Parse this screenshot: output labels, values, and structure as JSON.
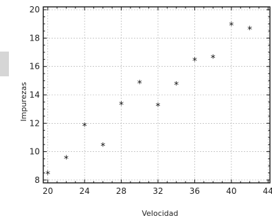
{
  "chart_data": {
    "type": "scatter",
    "title": "",
    "xlabel": "Velocidad",
    "ylabel": "Impurezas",
    "xlim": [
      19.5,
      44.2
    ],
    "ylim": [
      7.8,
      20.2
    ],
    "xticks": [
      20,
      24,
      28,
      32,
      36,
      40,
      44
    ],
    "yticks": [
      8,
      10,
      12,
      14,
      16,
      18,
      20
    ],
    "grid": true,
    "marker": "*",
    "color": "#111111",
    "x": [
      20,
      22,
      24,
      26,
      28,
      30,
      32,
      34,
      36,
      38,
      40,
      42
    ],
    "y": [
      8.4,
      9.5,
      11.8,
      10.4,
      13.3,
      14.8,
      13.2,
      14.7,
      16.4,
      16.6,
      18.9,
      18.6
    ]
  }
}
